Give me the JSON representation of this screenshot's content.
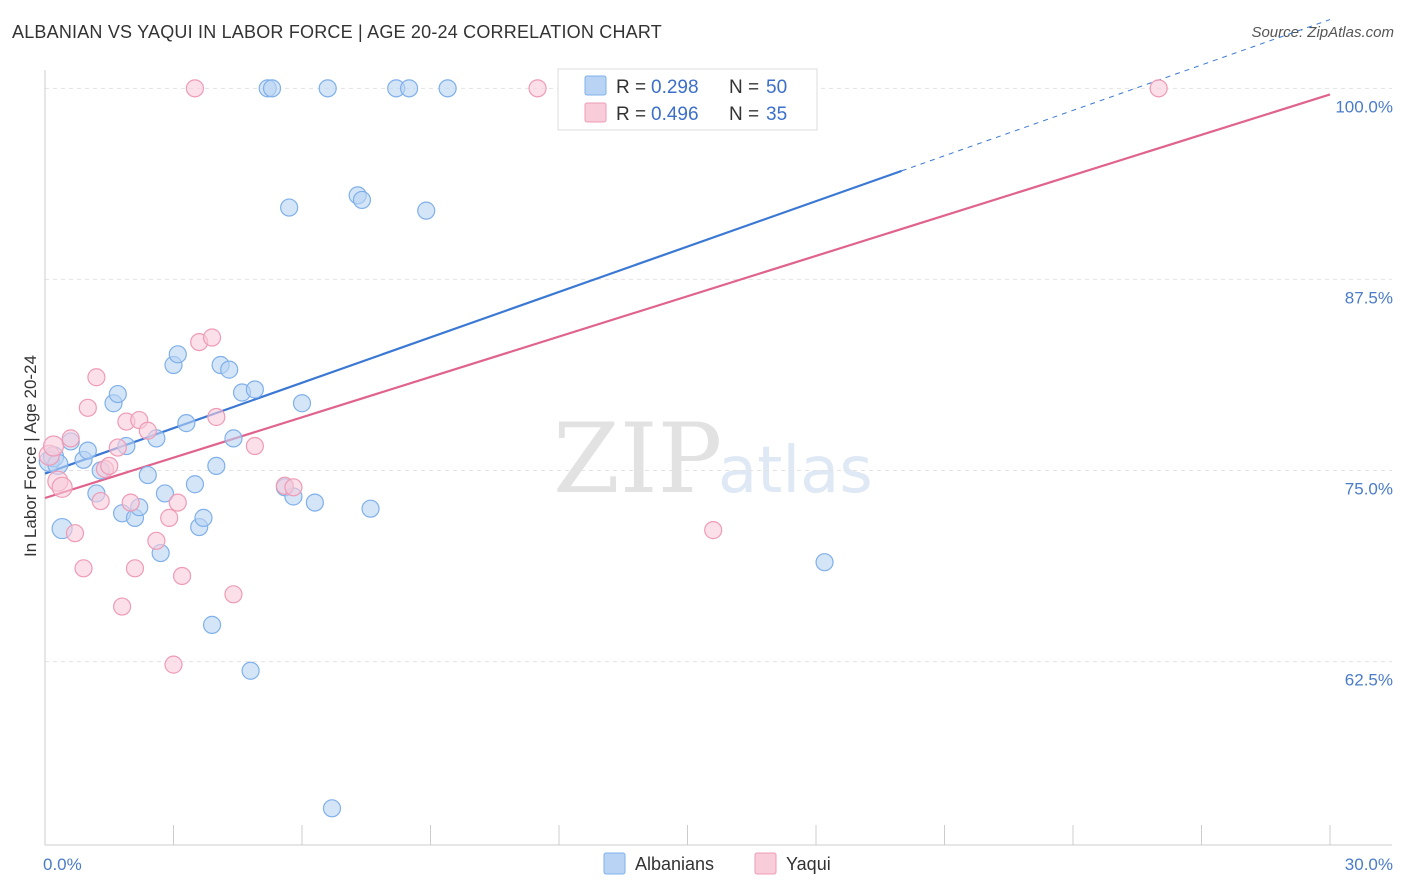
{
  "title": "ALBANIAN VS YAQUI IN LABOR FORCE | AGE 20-24 CORRELATION CHART",
  "source": "Source: ZipAtlas.com",
  "watermark": {
    "zip": "ZIP",
    "atlas": "atlas"
  },
  "chart_data": {
    "type": "scatter",
    "title": "ALBANIAN VS YAQUI IN LABOR FORCE | AGE 20-24 CORRELATION CHART",
    "xlabel": "",
    "ylabel": "In Labor Force | Age 20-24",
    "xlim": [
      0,
      30
    ],
    "ylim": [
      50.5,
      101.2
    ],
    "x_tick_labels": [
      {
        "value": 0,
        "label": "0.0%"
      },
      {
        "value": 30,
        "label": "30.0%"
      }
    ],
    "y_tick_labels": [
      {
        "value": 62.5,
        "label": "62.5%"
      },
      {
        "value": 75.0,
        "label": "75.0%"
      },
      {
        "value": 87.5,
        "label": "87.5%"
      },
      {
        "value": 100.0,
        "label": "100.0%"
      }
    ],
    "legend": [
      {
        "name": "Albanians",
        "r_label": "R =",
        "r": "0.298",
        "n_label": "N =",
        "n": "50",
        "color": "#7fb0ea",
        "fill": "#b9d3f4"
      },
      {
        "name": "Yaqui",
        "r_label": "R =",
        "r": "0.496",
        "n_label": "N =",
        "n": "35",
        "color": "#ef9bb5",
        "fill": "#f9ccda"
      }
    ],
    "series": [
      {
        "name": "Albanians",
        "color": "#3a78d4",
        "trend": {
          "x0": 0.0,
          "y0": 74.8,
          "x1": 20.0,
          "y1": 94.6,
          "dash_to_x": 30.0,
          "dash_to_y": 104.5
        },
        "points": [
          [
            0.1,
            75.6
          ],
          [
            0.2,
            75.9
          ],
          [
            0.3,
            75.4
          ],
          [
            0.4,
            71.2
          ],
          [
            0.6,
            76.9
          ],
          [
            0.9,
            75.7
          ],
          [
            1.0,
            76.3
          ],
          [
            1.2,
            73.5
          ],
          [
            1.3,
            75.0
          ],
          [
            1.6,
            79.4
          ],
          [
            1.7,
            80.0
          ],
          [
            1.8,
            72.2
          ],
          [
            1.9,
            76.6
          ],
          [
            2.1,
            71.9
          ],
          [
            2.2,
            72.6
          ],
          [
            2.4,
            74.7
          ],
          [
            2.6,
            77.1
          ],
          [
            2.7,
            69.6
          ],
          [
            2.8,
            73.5
          ],
          [
            3.0,
            81.9
          ],
          [
            3.1,
            82.6
          ],
          [
            3.3,
            78.1
          ],
          [
            3.5,
            74.1
          ],
          [
            3.6,
            71.3
          ],
          [
            3.7,
            71.9
          ],
          [
            3.9,
            64.9
          ],
          [
            4.0,
            75.3
          ],
          [
            4.1,
            81.9
          ],
          [
            4.3,
            81.6
          ],
          [
            4.4,
            77.1
          ],
          [
            4.6,
            80.1
          ],
          [
            4.9,
            80.3
          ],
          [
            4.8,
            61.9
          ],
          [
            5.2,
            100.0
          ],
          [
            5.3,
            100.0
          ],
          [
            5.6,
            73.9
          ],
          [
            5.7,
            92.2
          ],
          [
            5.8,
            73.3
          ],
          [
            6.0,
            79.4
          ],
          [
            6.3,
            72.9
          ],
          [
            6.6,
            100.0
          ],
          [
            6.7,
            52.9
          ],
          [
            7.3,
            93.0
          ],
          [
            7.4,
            92.7
          ],
          [
            7.6,
            72.5
          ],
          [
            8.2,
            100.0
          ],
          [
            8.5,
            100.0
          ],
          [
            8.9,
            92.0
          ],
          [
            9.4,
            100.0
          ],
          [
            18.2,
            69.0
          ]
        ]
      },
      {
        "name": "Yaqui",
        "color": "#e0638e",
        "trend": {
          "x0": 0.0,
          "y0": 73.2,
          "x1": 30.0,
          "y1": 99.6
        },
        "points": [
          [
            0.1,
            76.0
          ],
          [
            0.2,
            76.6
          ],
          [
            0.3,
            74.3
          ],
          [
            0.4,
            73.9
          ],
          [
            0.6,
            77.1
          ],
          [
            0.7,
            70.9
          ],
          [
            0.9,
            68.6
          ],
          [
            1.0,
            79.1
          ],
          [
            1.2,
            81.1
          ],
          [
            1.3,
            73.0
          ],
          [
            1.4,
            75.1
          ],
          [
            1.5,
            75.3
          ],
          [
            1.7,
            76.5
          ],
          [
            1.8,
            66.1
          ],
          [
            1.9,
            78.2
          ],
          [
            2.0,
            72.9
          ],
          [
            2.1,
            68.6
          ],
          [
            2.2,
            78.3
          ],
          [
            2.4,
            77.6
          ],
          [
            2.6,
            70.4
          ],
          [
            2.9,
            71.9
          ],
          [
            3.0,
            62.3
          ],
          [
            3.1,
            72.9
          ],
          [
            3.2,
            68.1
          ],
          [
            3.6,
            83.4
          ],
          [
            3.9,
            83.7
          ],
          [
            4.0,
            78.5
          ],
          [
            4.4,
            66.9
          ],
          [
            4.9,
            76.6
          ],
          [
            5.6,
            74.0
          ],
          [
            5.8,
            73.9
          ],
          [
            3.5,
            100.0
          ],
          [
            11.5,
            100.0
          ],
          [
            15.6,
            71.1
          ],
          [
            26.0,
            100.0
          ]
        ]
      }
    ]
  }
}
